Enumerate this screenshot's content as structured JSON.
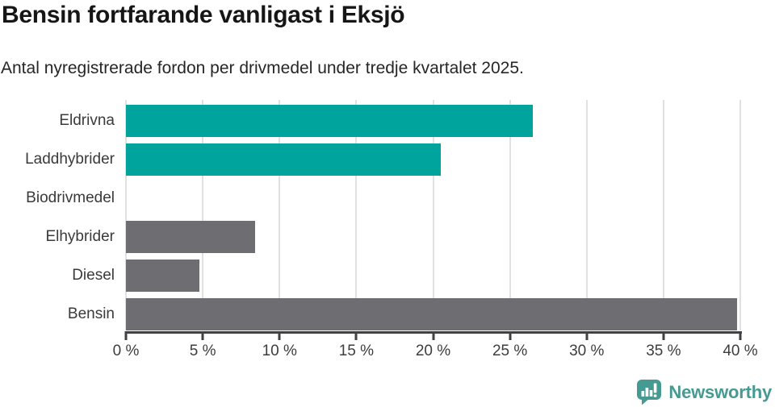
{
  "header": {
    "title": "Bensin fortfarande vanligast i Eksjö",
    "subtitle": "Antal nyregistrerade fordon per drivmedel under tredje kvartalet 2025."
  },
  "chart_data": {
    "type": "bar",
    "orientation": "horizontal",
    "title": "Bensin fortfarande vanligast i Eksjö",
    "subtitle": "Antal nyregistrerade fordon per drivmedel under tredje kvartalet 2025.",
    "categories": [
      "Eldrivna",
      "Laddhybrider",
      "Biodrivmedel",
      "Elhybrider",
      "Diesel",
      "Bensin"
    ],
    "values": [
      26.5,
      20.5,
      0,
      8.4,
      4.8,
      39.8
    ],
    "bar_colors": [
      "#00a49c",
      "#00a49c",
      "#00a49c",
      "#6d6d72",
      "#6d6d72",
      "#6d6d72"
    ],
    "unit": "%",
    "xlabel": "",
    "ylabel": "",
    "xlim": [
      0,
      40
    ],
    "x_ticks": [
      0,
      5,
      10,
      15,
      20,
      25,
      30,
      35,
      40
    ],
    "x_tick_labels": [
      "0 %",
      "5 %",
      "10 %",
      "15 %",
      "20 %",
      "25 %",
      "30 %",
      "35 %",
      "40 %"
    ],
    "grid": "vertical",
    "legend": "none"
  },
  "colors": {
    "highlight_teal": "#00a49c",
    "neutral_gray": "#6d6d72",
    "gridline": "#e1e1e1",
    "axis": "#404045",
    "brand_teal": "#459a92"
  },
  "branding": {
    "logo_text": "Newsworthy",
    "logo_icon": "newsworthy-speech-bubble-bar-chart-icon"
  }
}
